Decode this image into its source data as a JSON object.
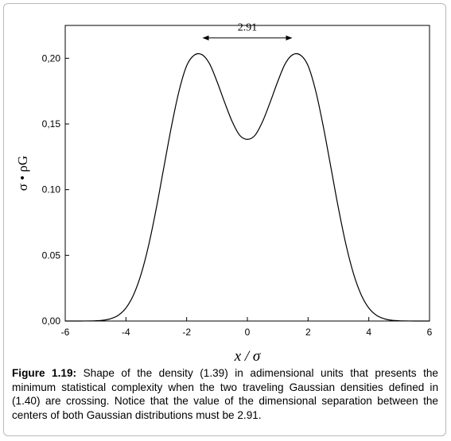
{
  "chart_data": {
    "type": "line",
    "xlabel": "x / σ",
    "ylabel": "σ • ρG",
    "xlim": [
      -6,
      6
    ],
    "ylim": [
      0,
      0.225
    ],
    "x_ticks": [
      -6,
      -4,
      -2,
      0,
      2,
      4,
      6
    ],
    "x_tick_labels": [
      "-6",
      "-4",
      "-2",
      "0",
      "2",
      "4",
      "6"
    ],
    "y_ticks": [
      0,
      0.05,
      0.1,
      0.15,
      0.2
    ],
    "y_tick_labels": [
      "0,00",
      "0.05",
      "0.10",
      "0,15",
      "0,20"
    ],
    "grid": false,
    "legend": "none",
    "series": [
      {
        "x": [
          -6.0,
          -5.5,
          -5.0,
          -4.75,
          -4.5,
          -4.25,
          -4.0,
          -3.75,
          -3.5,
          -3.25,
          -3.0,
          -2.75,
          -2.5,
          -2.25,
          -2.0,
          -1.75,
          -1.5,
          -1.25,
          -1.0,
          -0.75,
          -0.5,
          -0.25,
          0.0,
          0.25,
          0.5,
          0.75,
          1.0,
          1.25,
          1.5,
          1.75,
          2.0,
          2.25,
          2.5,
          2.75,
          3.0,
          3.25,
          3.5,
          3.75,
          4.0,
          4.25,
          4.5,
          4.75,
          5.0,
          5.5,
          6.0
        ],
        "y": [
          0.0,
          0.0,
          0.0002,
          0.0006,
          0.0018,
          0.0044,
          0.0099,
          0.0199,
          0.0357,
          0.0579,
          0.0858,
          0.1171,
          0.1482,
          0.1752,
          0.1943,
          0.2024,
          0.2028,
          0.196,
          0.1823,
          0.1665,
          0.1518,
          0.1413,
          0.1383,
          0.1413,
          0.1518,
          0.1665,
          0.1823,
          0.196,
          0.2028,
          0.2024,
          0.1943,
          0.1752,
          0.1482,
          0.1171,
          0.0858,
          0.0579,
          0.0357,
          0.0199,
          0.0099,
          0.0044,
          0.0018,
          0.0006,
          0.0002,
          0.0,
          0.0
        ]
      }
    ],
    "annotation": {
      "text": "2.91",
      "from_x": -1.455,
      "to_x": 1.455,
      "y": 0.2155
    }
  },
  "caption": {
    "label": "Figure 1.19:",
    "text": " Shape of the density (1.39) in adimensional units that presents the minimum statistical complexity when the two traveling Gaussian densities defined in (1.40) are crossing. Notice that the value of the dimensional separation between the centers of both Gaussian distributions must be 2.91."
  }
}
